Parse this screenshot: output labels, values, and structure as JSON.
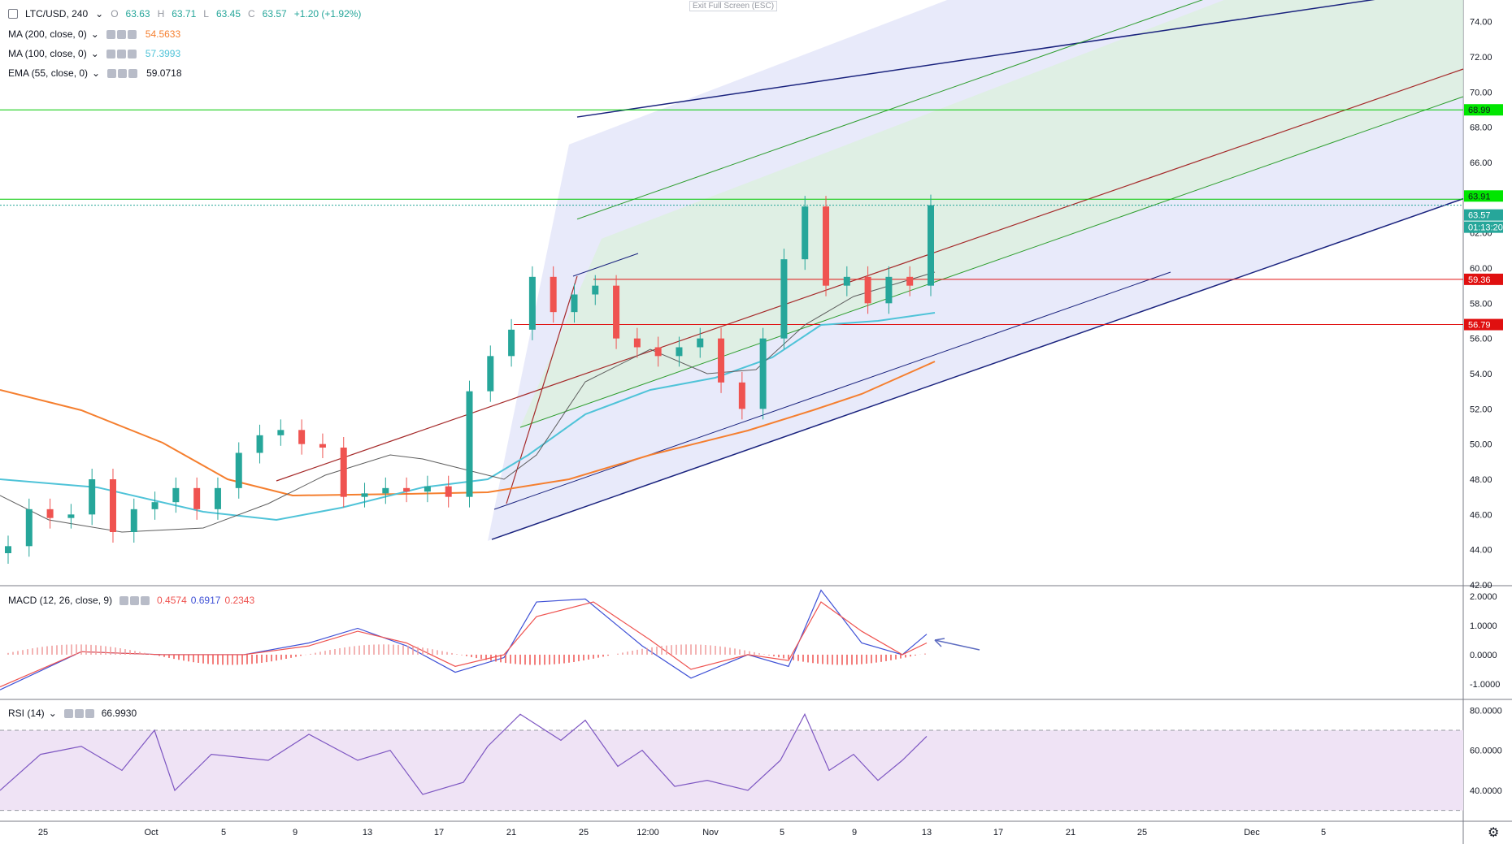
{
  "window": {
    "exit_fullscreen_label": "Exit Full Screen (ESC)"
  },
  "header": {
    "symbol": "LTC/USD, 240",
    "ohlc": [
      {
        "k": "O",
        "v": "63.63"
      },
      {
        "k": "H",
        "v": "63.71"
      },
      {
        "k": "L",
        "v": "63.45"
      },
      {
        "k": "C",
        "v": "63.57"
      }
    ],
    "change": "+1.20 (+1.92%)"
  },
  "indicators": [
    {
      "label": "MA (200, close, 0)",
      "value": "54.5633",
      "color": "#f57f2f"
    },
    {
      "label": "MA (100, close, 0)",
      "value": "57.3993",
      "color": "#4fc3d8"
    },
    {
      "label": "EMA (55, close, 0)",
      "value": "59.0718",
      "color": "#131722"
    }
  ],
  "macd_legend": {
    "label": "MACD (12, 26, close, 9)",
    "values": [
      "0.4574",
      "0.6917",
      "0.2343"
    ],
    "colors": [
      "#ef5350",
      "#3f51d6",
      "#ef5350"
    ]
  },
  "rsi_legend": {
    "label": "RSI (14)",
    "value": "66.9930",
    "color": "#7e57c2"
  },
  "price_axis": {
    "ticks": [
      "74.00",
      "72.00",
      "70.00",
      "68.00",
      "66.00",
      "62.00",
      "60.00",
      "58.00",
      "56.00",
      "54.00",
      "52.00",
      "50.00",
      "48.00",
      "46.00",
      "44.00",
      "42.00"
    ]
  },
  "macd_axis": {
    "ticks": [
      "2.0000",
      "1.0000",
      "0.0000",
      "-1.0000"
    ]
  },
  "rsi_axis": {
    "ticks": [
      "80.0000",
      "60.0000",
      "40.0000"
    ]
  },
  "time_axis": {
    "ticks": [
      "25",
      "Oct",
      "5",
      "9",
      "13",
      "17",
      "21",
      "25",
      "12:00",
      "Nov",
      "5",
      "9",
      "13",
      "17",
      "21",
      "25",
      "Dec",
      "5"
    ]
  },
  "price_labels": [
    {
      "text": "68.99",
      "bg": "#00e600",
      "fg": "#131722"
    },
    {
      "text": "63.91",
      "bg": "#00e600",
      "fg": "#131722"
    },
    {
      "text": "63.57",
      "bg": "#26a69a",
      "fg": "#ffffff"
    },
    {
      "text": "01:13:20",
      "bg": "#26a69a",
      "fg": "#ffffff"
    },
    {
      "text": "59.36",
      "bg": "#e01010",
      "fg": "#ffffff"
    },
    {
      "text": "56.79",
      "bg": "#e01010",
      "fg": "#ffffff"
    }
  ],
  "chart_data": {
    "type": "candlestick",
    "symbol": "LTC/USD",
    "interval": "240",
    "ylim": [
      42,
      75
    ],
    "candles": [
      {
        "date": "Sep 25",
        "close": 44.2
      },
      {
        "date": "Sep 27",
        "close": 46.3
      },
      {
        "date": "Sep 29",
        "close": 45.8
      },
      {
        "date": "Oct 1",
        "close": 46.0
      },
      {
        "date": "Oct 2",
        "close": 48.0
      },
      {
        "date": "Oct 3",
        "close": 45.0
      },
      {
        "date": "Oct 5",
        "close": 46.3
      },
      {
        "date": "Oct 7",
        "close": 46.7
      },
      {
        "date": "Oct 8",
        "close": 47.5
      },
      {
        "date": "Oct 9",
        "close": 46.3
      },
      {
        "date": "Oct 10",
        "close": 47.5
      },
      {
        "date": "Oct 11",
        "close": 49.5
      },
      {
        "date": "Oct 12",
        "close": 50.5
      },
      {
        "date": "Oct 13",
        "close": 50.8
      },
      {
        "date": "Oct 14",
        "close": 50.0
      },
      {
        "date": "Oct 15",
        "close": 49.8
      },
      {
        "date": "Oct 16",
        "close": 47.0
      },
      {
        "date": "Oct 17",
        "close": 47.2
      },
      {
        "date": "Oct 18",
        "close": 47.5
      },
      {
        "date": "Oct 19",
        "close": 47.3
      },
      {
        "date": "Oct 20",
        "close": 47.6
      },
      {
        "date": "Oct 21",
        "close": 47.0
      },
      {
        "date": "Oct 22",
        "close": 53.0
      },
      {
        "date": "Oct 23",
        "close": 55.0
      },
      {
        "date": "Oct 24",
        "close": 56.5
      },
      {
        "date": "Oct 25",
        "close": 59.5
      },
      {
        "date": "Oct 26",
        "close": 57.5
      },
      {
        "date": "Oct 27",
        "close": 58.5
      },
      {
        "date": "Oct 28",
        "close": 59.0
      },
      {
        "date": "Oct 29",
        "close": 56.0
      },
      {
        "date": "Oct 30",
        "close": 55.5
      },
      {
        "date": "Oct 31",
        "close": 55.0
      },
      {
        "date": "Nov 1",
        "close": 55.5
      },
      {
        "date": "Nov 2",
        "close": 56.0
      },
      {
        "date": "Nov 3",
        "close": 53.5
      },
      {
        "date": "Nov 4",
        "close": 52.0
      },
      {
        "date": "Nov 5",
        "close": 56.0
      },
      {
        "date": "Nov 6",
        "close": 60.5
      },
      {
        "date": "Nov 7",
        "close": 63.5
      },
      {
        "date": "Nov 8",
        "close": 59.0
      },
      {
        "date": "Nov 9",
        "close": 59.5
      },
      {
        "date": "Nov 10",
        "close": 58.0
      },
      {
        "date": "Nov 11",
        "close": 59.5
      },
      {
        "date": "Nov 12",
        "close": 59.0
      },
      {
        "date": "Nov 13",
        "close": 63.57
      }
    ],
    "moving_averages": [
      {
        "name": "MA (200, close, 0)",
        "last": 54.5633,
        "color": "#f57f2f"
      },
      {
        "name": "MA (100, close, 0)",
        "last": 57.3993,
        "color": "#4fc3d8"
      },
      {
        "name": "EMA (55, close, 0)",
        "last": 59.0718,
        "color": "#131722"
      }
    ],
    "horizontal_levels": [
      {
        "price": 68.99,
        "color": "#00c800"
      },
      {
        "price": 63.91,
        "color": "#00c800"
      },
      {
        "price": 59.36,
        "color": "#e01010"
      },
      {
        "price": 56.79,
        "color": "#e01010"
      }
    ],
    "last_price": 63.57,
    "countdown": "01:13:20",
    "macd": {
      "macd_last": 0.6917,
      "signal_last": 0.4574,
      "hist_last": 0.2343,
      "ylim": [
        -1.5,
        2.3
      ]
    },
    "rsi": {
      "last": 66.993,
      "upper_band": 70,
      "lower_band": 30,
      "ylim": [
        25,
        85
      ]
    },
    "x_ticks": [
      "25",
      "Oct",
      "5",
      "9",
      "13",
      "17",
      "21",
      "25",
      "12:00",
      "Nov",
      "5",
      "9",
      "13",
      "17",
      "21",
      "25",
      "Dec",
      "5"
    ],
    "grid": false
  }
}
